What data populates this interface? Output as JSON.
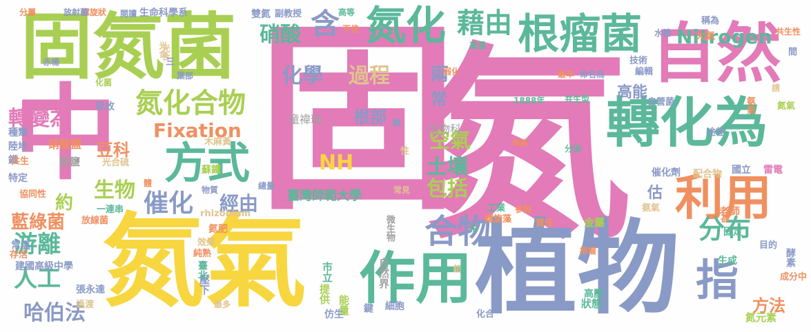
{
  "palette": {
    "pink": "#e27bb8",
    "yellow": "#f8d640",
    "green": "#70c46e",
    "teal": "#5bb89a",
    "slate": "#8a9ac6",
    "orange": "#f09060",
    "lime": "#a9cf52",
    "grey": "#a0a0a0",
    "tan": "#e0c490"
  },
  "words": [
    "固",
    "氮",
    "中",
    "氮氣",
    "植物",
    "固氮菌",
    "作用",
    "自然",
    "轉化為",
    "利用",
    "根瘤菌",
    "氮化",
    "合物",
    "藉由",
    "方式",
    "含",
    "指",
    "Nitrogen",
    "Fixation",
    "氮化合物",
    "分布",
    "人工",
    "游離",
    "催化",
    "過程",
    "化學",
    "生物",
    "NH",
    "硝酸",
    "轉變為",
    "哈伯法",
    "藍綠菌",
    "土壤",
    "空氣",
    "包括",
    "方法",
    "兩",
    "常",
    "高能",
    "估",
    "約",
    "經由",
    "豆科",
    "根部",
    "童禕珊",
    "臺灣師範大學",
    "生物科",
    "硝酸鹽",
    "銨鹽",
    "光合",
    "效果",
    "壓下",
    "過渡",
    "市立",
    "提供",
    "能量",
    "仿生",
    "細胞",
    "化合",
    "鍵",
    "鉬",
    "微生物",
    "自然界",
    "狀態",
    "氮元素",
    "成分中",
    "酵素",
    "目的",
    "生成",
    "固定",
    "老師",
    "國立",
    "雷電",
    "配合物",
    "催化劑",
    "途徑",
    "氨氣",
    "氮氣",
    "自營菌",
    "金屬",
    "責任",
    "工業",
    "螺旋藻",
    "參閱",
    "甚",
    "氨氣",
    "共生型",
    "最早",
    "命名為",
    "1888年",
    "技術",
    "編輯",
    "水體",
    "大氣",
    "稱為",
    "共生性",
    "間",
    "雙氮",
    "副教授",
    "高等",
    "不佳",
    "生命科學系",
    "閱讀",
    "螺旋狀",
    "放射菌",
    "分屬",
    "弱化",
    "高溫",
    "光合",
    "赤楊",
    "三",
    "葉部",
    "化菌",
    "吸收",
    "種類",
    "陸地",
    "鐵",
    "共生",
    "特定",
    "協同性",
    "放線菌",
    "常溫",
    "存活",
    "建國高級中學",
    "張永達",
    "臺北",
    "最多",
    "一連串",
    "氮肥",
    "純熟",
    "物質",
    "總量",
    "蘇鐵",
    "木麻黃",
    "光合硫",
    "性",
    "常見",
    "需",
    "rhizobium",
    "分泌",
    "捍菌",
    "根瘤",
    "高壓",
    "末",
    "體",
    "請"
  ]
}
